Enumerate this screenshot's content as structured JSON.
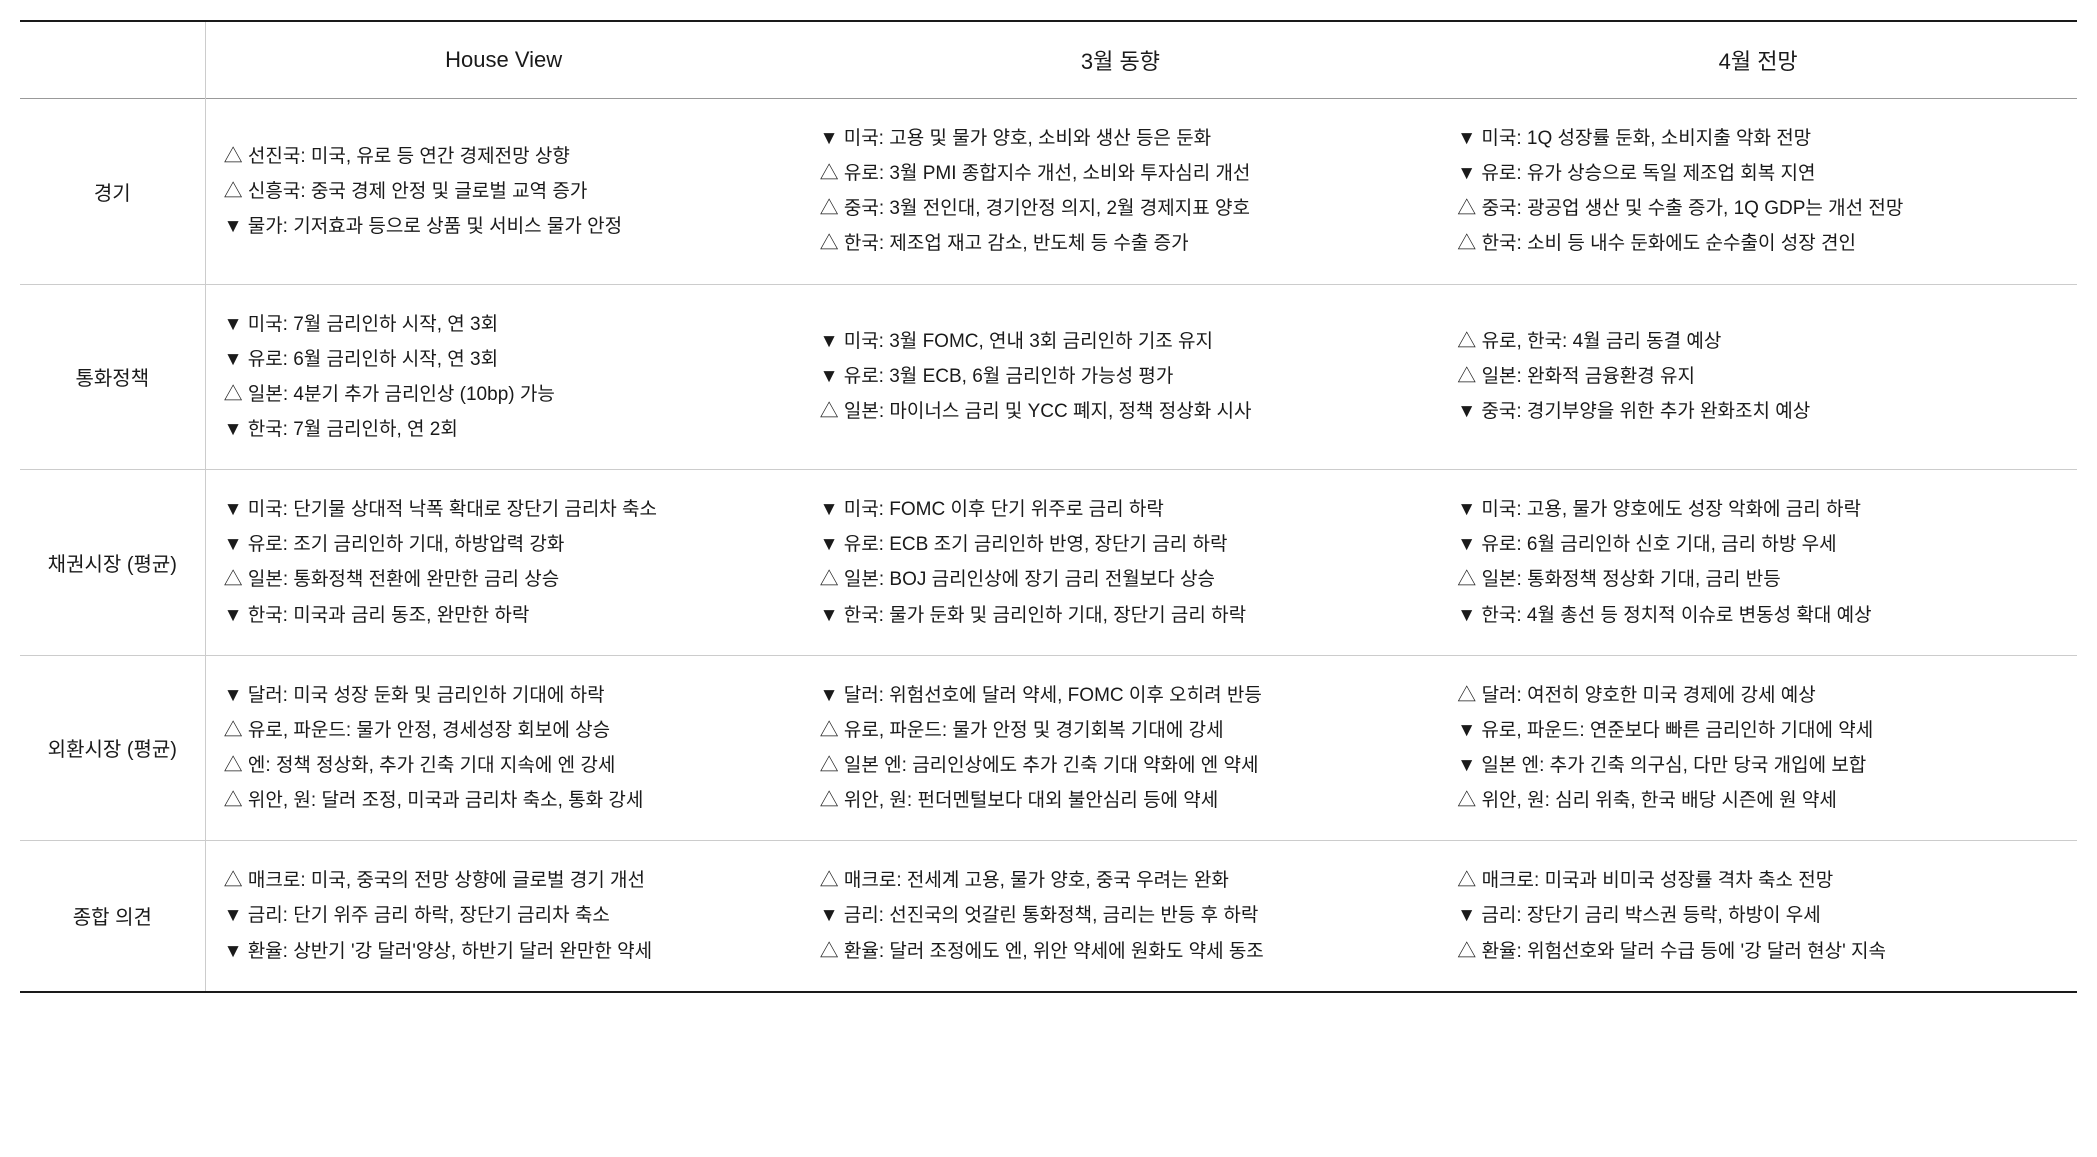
{
  "table": {
    "type": "table",
    "background_color": "#ffffff",
    "text_color": "#1a1a1a",
    "border_top_color": "#1a1a1a",
    "header_border_color": "#999999",
    "cell_border_color": "#cccccc",
    "header_fontsize": 22,
    "rowlabel_fontsize": 20,
    "cell_fontsize": 19,
    "line_height": 1.85,
    "column_widths_pct": [
      9,
      29,
      31,
      31
    ],
    "columns": [
      "",
      "House View",
      "3월 동향",
      "4월 전망"
    ],
    "rows": [
      {
        "label": "경기",
        "house_view": [
          "△ 선진국: 미국, 유로 등 연간 경제전망 상향",
          "△ 신흥국: 중국 경제 안정 및 글로벌 교역 증가",
          "▼ 물가: 기저효과 등으로 상품 및 서비스 물가 안정"
        ],
        "march_trend": [
          "▼ 미국: 고용 및 물가 양호, 소비와 생산 등은 둔화",
          "△ 유로: 3월 PMI 종합지수 개선, 소비와 투자심리 개선",
          "△ 중국: 3월 전인대, 경기안정 의지, 2월 경제지표 양호",
          "△ 한국: 제조업 재고 감소, 반도체 등 수출 증가"
        ],
        "april_outlook": [
          "▼ 미국: 1Q 성장률 둔화, 소비지출 악화 전망",
          "▼ 유로: 유가 상승으로 독일 제조업 회복 지연",
          "△ 중국: 광공업 생산 및 수출 증가, 1Q GDP는 개선 전망",
          "△ 한국: 소비 등 내수 둔화에도 순수출이 성장 견인"
        ]
      },
      {
        "label": "통화정책",
        "house_view": [
          "▼  미국: 7월 금리인하 시작, 연 3회",
          "▼  유로: 6월 금리인하 시작, 연 3회",
          "△ 일본:  4분기 추가 금리인상 (10bp) 가능",
          "▼  한국: 7월 금리인하, 연 2회"
        ],
        "march_trend": [
          "▼ 미국: 3월 FOMC, 연내 3회 금리인하 기조 유지",
          "▼ 유로: 3월 ECB, 6월 금리인하 가능성 평가",
          "△ 일본: 마이너스 금리 및 YCC 폐지, 정책 정상화 시사"
        ],
        "april_outlook": [
          "△ 유로, 한국: 4월 금리 동결 예상",
          "△ 일본: 완화적 금융환경 유지",
          "▼ 중국: 경기부양을 위한 추가 완화조치 예상"
        ]
      },
      {
        "label": "채권시장 (평균)",
        "house_view": [
          "▼ 미국: 단기물 상대적 낙폭 확대로 장단기 금리차 축소",
          "▼ 유로: 조기 금리인하 기대, 하방압력 강화",
          "△ 일본: 통화정책 전환에 완만한 금리 상승",
          "▼ 한국: 미국과 금리 동조, 완만한 하락"
        ],
        "march_trend": [
          "▼ 미국: FOMC 이후 단기 위주로 금리 하락",
          "▼ 유로: ECB 조기 금리인하 반영, 장단기 금리 하락",
          "△ 일본: BOJ 금리인상에 장기 금리 전월보다 상승",
          "▼ 한국: 물가 둔화 및 금리인하 기대, 장단기 금리 하락"
        ],
        "april_outlook": [
          "▼ 미국: 고용, 물가 양호에도 성장 악화에 금리 하락",
          "▼ 유로: 6월 금리인하 신호 기대, 금리 하방 우세",
          "△ 일본: 통화정책 정상화 기대, 금리 반등",
          "▼ 한국: 4월 총선 등 정치적 이슈로 변동성 확대 예상"
        ]
      },
      {
        "label": "외환시장 (평균)",
        "house_view": [
          "▼ 달러: 미국 성장 둔화 및 금리인하 기대에 하락",
          "△ 유로, 파운드: 물가 안정, 경세성장 회보에 상승",
          "△ 엔: 정책 정상화, 추가 긴축 기대 지속에 엔 강세",
          "△ 위안, 원: 달러 조정, 미국과 금리차 축소, 통화 강세"
        ],
        "march_trend": [
          "▼ 달러: 위험선호에 달러 약세, FOMC 이후 오히려 반등",
          "△ 유로, 파운드: 물가 안정 및 경기회복 기대에 강세",
          "△ 일본 엔: 금리인상에도 추가 긴축 기대 약화에 엔 약세",
          "△ 위안, 원: 펀더멘털보다 대외 불안심리 등에 약세"
        ],
        "april_outlook": [
          "△ 달러: 여전히 양호한 미국 경제에 강세 예상",
          "▼ 유로, 파운드: 연준보다 빠른 금리인하 기대에 약세",
          "▼ 일본 엔: 추가 긴축 의구심, 다만 당국 개입에 보합",
          "△ 위안, 원: 심리 위축, 한국 배당 시즌에 원 약세"
        ]
      },
      {
        "label": "종합 의견",
        "house_view": [
          "△ 매크로: 미국, 중국의 전망 상향에 글로벌 경기 개선",
          "▼ 금리: 단기 위주 금리 하락, 장단기 금리차 축소",
          "▼ 환율: 상반기 '강 달러'양상, 하반기 달러 완만한 약세"
        ],
        "march_trend": [
          "△ 매크로: 전세계 고용, 물가 양호, 중국 우려는 완화",
          "▼ 금리: 선진국의 엇갈린 통화정책, 금리는 반등 후 하락",
          "△ 환율: 달러 조정에도 엔, 위안 약세에 원화도 약세 동조"
        ],
        "april_outlook": [
          "△ 매크로: 미국과 비미국 성장률 격차 축소 전망",
          "▼ 금리: 장단기 금리 박스권 등락, 하방이 우세",
          "△ 환율: 위험선호와 달러 수급 등에 '강 달러 현상' 지속"
        ]
      }
    ]
  }
}
